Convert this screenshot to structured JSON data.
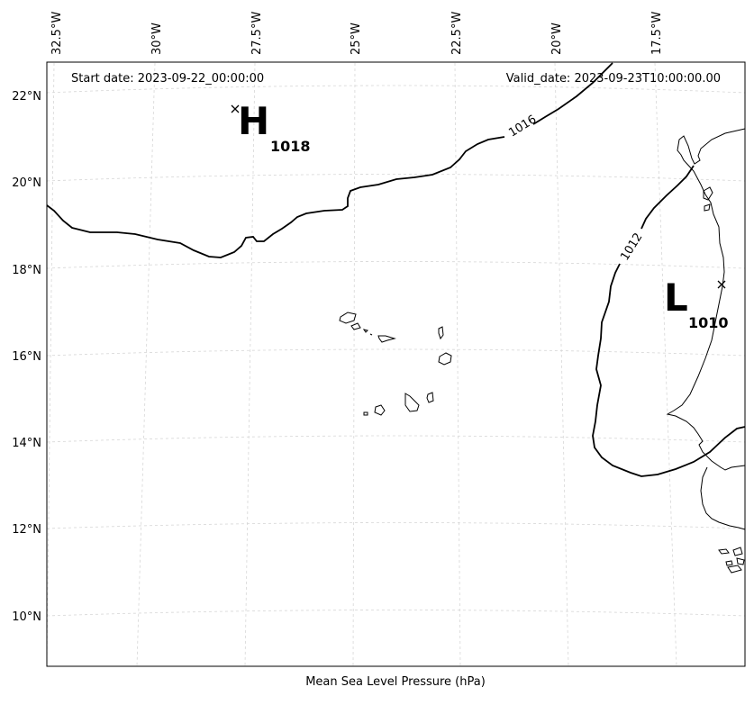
{
  "header": {
    "start_date": "Start date: 2023-09-22_00:00:00",
    "valid_date": "Valid_date: 2023-09-23T10:00:00.00"
  },
  "footer": {
    "caption": "Mean Sea Level Pressure (hPa)"
  },
  "axes": {
    "longitude_labels": [
      "32.5°W",
      "30°W",
      "27.5°W",
      "25°W",
      "22.5°W",
      "20°W",
      "17.5°W"
    ],
    "latitude_labels": [
      "22°N",
      "20°N",
      "18°N",
      "16°N",
      "14°N",
      "12°N",
      "10°N"
    ]
  },
  "isobars": [
    {
      "value": "1016",
      "label": "1016"
    },
    {
      "value": "1012",
      "label": "1012"
    }
  ],
  "pressure_systems": [
    {
      "type": "high",
      "letter": "H",
      "value": "1018"
    },
    {
      "type": "low",
      "letter": "L",
      "value": "1010"
    }
  ],
  "colors": {
    "isobar": "#000000",
    "coastline": "#000000",
    "grid": "#d6d6d6"
  }
}
